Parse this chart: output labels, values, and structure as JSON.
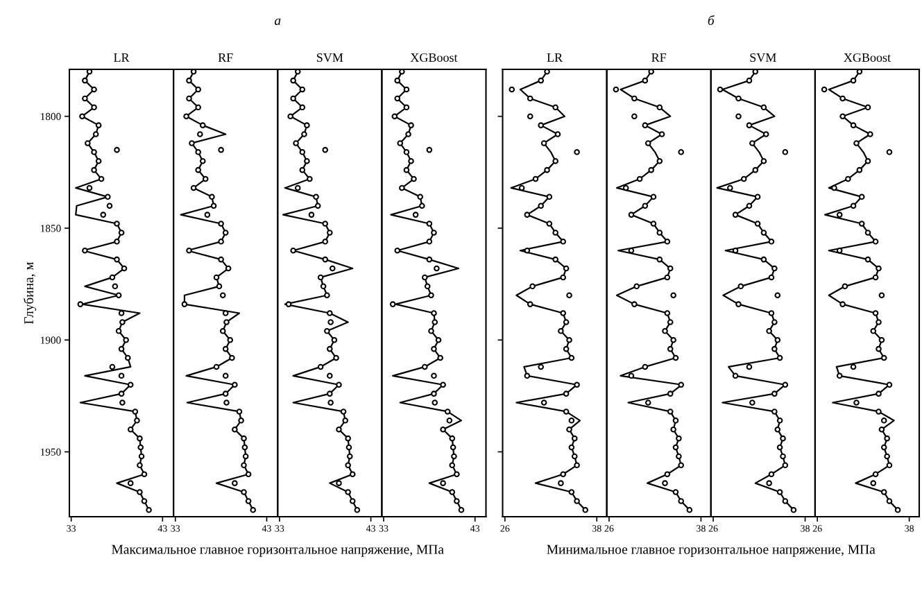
{
  "chart_data": [
    {
      "type": "line",
      "title": "LR",
      "xlabel": "Максимальное главное горизонтальное напряжение, МПа",
      "ylabel": "Глубина, м",
      "xlim": [
        32.8,
        44.2
      ],
      "xticks": [
        33,
        43
      ],
      "ylim": [
        1979,
        1779
      ],
      "yticks": [
        1800,
        1850,
        1900,
        1950
      ],
      "grid": false,
      "legend": false,
      "series": [
        {
          "color": "#000000",
          "x": [
            35.0,
            34.5,
            35.5,
            34.5,
            35.5,
            34.2,
            36.0,
            35.7,
            34.8,
            35.5,
            36.0,
            35.5,
            36.3,
            33.5,
            37.0,
            33.6,
            33.5,
            38.0,
            38.5,
            38.0,
            34.3,
            38.0,
            38.8,
            37.5,
            34.5,
            38.2,
            34.2,
            40.5,
            38.6,
            38.2,
            39.0,
            38.5,
            39.2,
            39.5,
            34.5,
            39.5,
            38.5,
            34.0,
            40.0,
            40.2,
            39.5,
            40.5,
            40.6,
            40.7,
            40.5,
            41.0,
            38.0,
            40.5,
            41.0,
            41.5
          ],
          "values": [
            1780,
            1784,
            1788,
            1792,
            1796,
            1800,
            1804,
            1808,
            1812,
            1816,
            1820,
            1824,
            1828,
            1832,
            1836,
            1840,
            1844,
            1848,
            1852,
            1856,
            1860,
            1864,
            1868,
            1872,
            1876,
            1880,
            1884,
            1888,
            1892,
            1896,
            1900,
            1904,
            1908,
            1912,
            1916,
            1920,
            1924,
            1928,
            1932,
            1936,
            1940,
            1944,
            1948,
            1952,
            1956,
            1960,
            1964,
            1968,
            1972,
            1976
          ]
        },
        {
          "type": "scatter",
          "marker": "circle",
          "color": "#000000",
          "x": [
            35.0,
            34.5,
            35.5,
            34.5,
            35.5,
            34.2,
            36.0,
            35.7,
            34.8,
            35.5,
            36.0,
            35.5,
            36.3,
            35.0,
            37.0,
            37.2,
            36.5,
            38.0,
            38.5,
            38.0,
            34.5,
            38.0,
            38.8,
            37.5,
            37.8,
            38.2,
            34.0,
            38.5,
            38.6,
            38.2,
            39.0,
            38.5,
            39.2,
            37.5,
            38.5,
            39.5,
            38.5,
            38.6,
            40.0,
            40.2,
            39.5,
            40.5,
            40.6,
            40.7,
            40.5,
            41.0,
            39.5,
            40.5,
            41.0,
            41.5,
            38.0
          ],
          "values": [
            1780,
            1784,
            1788,
            1792,
            1796,
            1800,
            1804,
            1808,
            1812,
            1816,
            1820,
            1824,
            1828,
            1832,
            1836,
            1840,
            1844,
            1848,
            1852,
            1856,
            1860,
            1864,
            1868,
            1872,
            1876,
            1880,
            1884,
            1888,
            1892,
            1896,
            1900,
            1904,
            1908,
            1912,
            1916,
            1920,
            1924,
            1928,
            1932,
            1936,
            1940,
            1944,
            1948,
            1952,
            1956,
            1960,
            1964,
            1968,
            1972,
            1976,
            1815
          ]
        }
      ]
    },
    {
      "type": "line",
      "title": "RF",
      "subtitle": "а",
      "xlim": [
        32.8,
        44.2
      ],
      "xticks": [
        33,
        43
      ],
      "ylim": [
        1979,
        1779
      ],
      "tick_labels": "x",
      "grid": false,
      "legend": false,
      "series": [
        {
          "color": "#000000",
          "x": [
            35.0,
            34.5,
            35.5,
            34.5,
            35.5,
            34.2,
            36.0,
            38.5,
            34.8,
            35.5,
            36.0,
            35.5,
            36.3,
            35.0,
            37.0,
            37.2,
            33.6,
            38.0,
            38.5,
            38.0,
            34.3,
            38.0,
            38.8,
            37.5,
            37.8,
            34.0,
            34.0,
            40.0,
            38.6,
            38.2,
            39.0,
            38.5,
            39.2,
            37.5,
            34.2,
            39.5,
            38.5,
            34.3,
            40.0,
            40.2,
            39.5,
            40.5,
            40.6,
            40.7,
            40.5,
            41.0,
            37.5,
            40.5,
            41.0,
            41.5
          ],
          "values": [
            1780,
            1784,
            1788,
            1792,
            1796,
            1800,
            1804,
            1808,
            1812,
            1816,
            1820,
            1824,
            1828,
            1832,
            1836,
            1840,
            1844,
            1848,
            1852,
            1856,
            1860,
            1864,
            1868,
            1872,
            1876,
            1880,
            1884,
            1888,
            1892,
            1896,
            1900,
            1904,
            1908,
            1912,
            1916,
            1920,
            1924,
            1928,
            1932,
            1936,
            1940,
            1944,
            1948,
            1952,
            1956,
            1960,
            1964,
            1968,
            1972,
            1976
          ]
        },
        {
          "type": "scatter",
          "marker": "circle",
          "color": "#000000",
          "x": [
            35.0,
            34.5,
            35.5,
            34.5,
            35.5,
            34.2,
            36.0,
            35.7,
            34.8,
            35.5,
            36.0,
            35.5,
            36.3,
            35.0,
            37.0,
            37.2,
            36.5,
            38.0,
            38.5,
            38.0,
            34.5,
            38.0,
            38.8,
            37.5,
            37.8,
            38.2,
            34.0,
            38.5,
            38.6,
            38.2,
            39.0,
            38.5,
            39.2,
            37.5,
            38.5,
            39.5,
            38.5,
            38.6,
            40.0,
            40.2,
            39.5,
            40.5,
            40.6,
            40.7,
            40.5,
            41.0,
            39.5,
            40.5,
            41.0,
            41.5,
            38.0
          ],
          "values": [
            1780,
            1784,
            1788,
            1792,
            1796,
            1800,
            1804,
            1808,
            1812,
            1816,
            1820,
            1824,
            1828,
            1832,
            1836,
            1840,
            1844,
            1848,
            1852,
            1856,
            1860,
            1864,
            1868,
            1872,
            1876,
            1880,
            1884,
            1888,
            1892,
            1896,
            1900,
            1904,
            1908,
            1912,
            1916,
            1920,
            1924,
            1928,
            1932,
            1936,
            1940,
            1944,
            1948,
            1952,
            1956,
            1960,
            1964,
            1968,
            1972,
            1976,
            1815
          ]
        }
      ]
    },
    {
      "type": "line",
      "title": "SVM",
      "xlim": [
        32.8,
        44.2
      ],
      "xticks": [
        33,
        43
      ],
      "ylim": [
        1979,
        1779
      ],
      "tick_labels": "x",
      "grid": false,
      "legend": false,
      "series": [
        {
          "color": "#000000",
          "x": [
            35.0,
            34.5,
            35.5,
            34.5,
            35.5,
            34.2,
            36.0,
            35.7,
            34.8,
            35.5,
            36.0,
            35.5,
            36.3,
            33.6,
            37.0,
            37.2,
            33.4,
            38.0,
            38.5,
            38.0,
            34.5,
            38.0,
            41.0,
            37.5,
            37.8,
            38.2,
            33.6,
            38.5,
            40.5,
            38.2,
            39.0,
            38.5,
            39.2,
            37.5,
            34.5,
            39.5,
            38.5,
            34.5,
            40.0,
            40.2,
            39.5,
            40.5,
            40.6,
            40.7,
            40.5,
            41.0,
            38.5,
            40.5,
            41.0,
            41.5
          ],
          "values": [
            1780,
            1784,
            1788,
            1792,
            1796,
            1800,
            1804,
            1808,
            1812,
            1816,
            1820,
            1824,
            1828,
            1832,
            1836,
            1840,
            1844,
            1848,
            1852,
            1856,
            1860,
            1864,
            1868,
            1872,
            1876,
            1880,
            1884,
            1888,
            1892,
            1896,
            1900,
            1904,
            1908,
            1912,
            1916,
            1920,
            1924,
            1928,
            1932,
            1936,
            1940,
            1944,
            1948,
            1952,
            1956,
            1960,
            1964,
            1968,
            1972,
            1976
          ]
        },
        {
          "type": "scatter",
          "marker": "circle",
          "color": "#000000",
          "x": [
            35.0,
            34.5,
            35.5,
            34.5,
            35.5,
            34.2,
            36.0,
            35.7,
            34.8,
            35.5,
            36.0,
            35.5,
            36.3,
            35.0,
            37.0,
            37.2,
            36.5,
            38.0,
            38.5,
            38.0,
            34.5,
            38.0,
            38.8,
            37.5,
            37.8,
            38.2,
            34.0,
            38.5,
            38.6,
            38.2,
            39.0,
            38.5,
            39.2,
            37.5,
            38.5,
            39.5,
            38.5,
            38.6,
            40.0,
            40.2,
            39.5,
            40.5,
            40.6,
            40.7,
            40.5,
            41.0,
            39.5,
            40.5,
            41.0,
            41.5,
            38.0
          ],
          "values": [
            1780,
            1784,
            1788,
            1792,
            1796,
            1800,
            1804,
            1808,
            1812,
            1816,
            1820,
            1824,
            1828,
            1832,
            1836,
            1840,
            1844,
            1848,
            1852,
            1856,
            1860,
            1864,
            1868,
            1872,
            1876,
            1880,
            1884,
            1888,
            1892,
            1896,
            1900,
            1904,
            1908,
            1912,
            1916,
            1920,
            1924,
            1928,
            1932,
            1936,
            1940,
            1944,
            1948,
            1952,
            1956,
            1960,
            1964,
            1968,
            1972,
            1976,
            1815
          ]
        }
      ]
    },
    {
      "type": "line",
      "title": "XGBoost",
      "xlim": [
        32.8,
        44.2
      ],
      "xticks": [
        33,
        43
      ],
      "ylim": [
        1979,
        1779
      ],
      "tick_labels": "x",
      "grid": false,
      "legend": false,
      "series": [
        {
          "color": "#000000",
          "x": [
            35.0,
            34.5,
            35.5,
            34.5,
            35.5,
            34.2,
            36.0,
            35.7,
            34.8,
            35.5,
            36.0,
            35.5,
            36.3,
            35.0,
            37.0,
            37.2,
            33.8,
            38.0,
            38.5,
            38.0,
            34.5,
            38.0,
            41.2,
            37.5,
            37.8,
            38.2,
            34.3,
            38.5,
            38.6,
            38.2,
            39.0,
            38.5,
            39.2,
            37.5,
            34.0,
            39.5,
            38.5,
            34.8,
            40.0,
            41.5,
            39.5,
            40.5,
            40.6,
            40.7,
            40.5,
            41.0,
            38.0,
            40.5,
            41.0,
            41.5
          ],
          "values": [
            1780,
            1784,
            1788,
            1792,
            1796,
            1800,
            1804,
            1808,
            1812,
            1816,
            1820,
            1824,
            1828,
            1832,
            1836,
            1840,
            1844,
            1848,
            1852,
            1856,
            1860,
            1864,
            1868,
            1872,
            1876,
            1880,
            1884,
            1888,
            1892,
            1896,
            1900,
            1904,
            1908,
            1912,
            1916,
            1920,
            1924,
            1928,
            1932,
            1936,
            1940,
            1944,
            1948,
            1952,
            1956,
            1960,
            1964,
            1968,
            1972,
            1976
          ]
        },
        {
          "type": "scatter",
          "marker": "circle",
          "color": "#000000",
          "x": [
            35.0,
            34.5,
            35.5,
            34.5,
            35.5,
            34.2,
            36.0,
            35.7,
            34.8,
            35.5,
            36.0,
            35.5,
            36.3,
            35.0,
            37.0,
            37.2,
            36.5,
            38.0,
            38.5,
            38.0,
            34.5,
            38.0,
            38.8,
            37.5,
            37.8,
            38.2,
            34.0,
            38.5,
            38.6,
            38.2,
            39.0,
            38.5,
            39.2,
            37.5,
            38.5,
            39.5,
            38.5,
            38.6,
            40.0,
            40.2,
            39.5,
            40.5,
            40.6,
            40.7,
            40.5,
            41.0,
            39.5,
            40.5,
            41.0,
            41.5,
            38.0
          ],
          "values": [
            1780,
            1784,
            1788,
            1792,
            1796,
            1800,
            1804,
            1808,
            1812,
            1816,
            1820,
            1824,
            1828,
            1832,
            1836,
            1840,
            1844,
            1848,
            1852,
            1856,
            1860,
            1864,
            1868,
            1872,
            1876,
            1880,
            1884,
            1888,
            1892,
            1896,
            1900,
            1904,
            1908,
            1912,
            1916,
            1920,
            1924,
            1928,
            1932,
            1936,
            1940,
            1944,
            1948,
            1952,
            1956,
            1960,
            1964,
            1968,
            1972,
            1976,
            1815
          ]
        }
      ]
    },
    {
      "type": "line",
      "title": "LR",
      "xlabel": "Минимальное главное горизонтальное напряжение, МПа",
      "xlim": [
        25.7,
        39.3
      ],
      "xticks": [
        26,
        38
      ],
      "ylim": [
        1979,
        1779
      ],
      "yticks": [
        {
          "value": 1800,
          "label": null
        },
        {
          "value": 1850,
          "label": null
        },
        {
          "value": 1900,
          "label": null
        },
        {
          "value": 1950,
          "label": null
        }
      ],
      "tick_labels": "x",
      "grid": false,
      "legend": false,
      "series": [
        {
          "color": "#000000",
          "x": [
            31.5,
            30.7,
            28.0,
            29.3,
            32.6,
            33.8,
            30.7,
            32.9,
            31.1,
            32.0,
            32.6,
            31.5,
            30.0,
            26.8,
            31.8,
            30.7,
            28.9,
            31.8,
            32.6,
            33.6,
            28.0,
            32.6,
            34.0,
            33.6,
            29.6,
            27.5,
            29.3,
            33.6,
            34.0,
            33.3,
            34.4,
            34.0,
            34.7,
            28.5,
            28.9,
            35.4,
            34.0,
            27.5,
            34.0,
            35.8,
            34.4,
            35.1,
            34.7,
            35.1,
            35.4,
            33.6,
            30.0,
            34.7,
            35.4,
            36.5
          ],
          "values": [
            1780,
            1784,
            1788,
            1792,
            1796,
            1800,
            1804,
            1808,
            1812,
            1816,
            1820,
            1824,
            1828,
            1832,
            1836,
            1840,
            1844,
            1848,
            1852,
            1856,
            1860,
            1864,
            1868,
            1872,
            1876,
            1880,
            1884,
            1888,
            1892,
            1896,
            1900,
            1904,
            1908,
            1912,
            1916,
            1920,
            1924,
            1928,
            1932,
            1936,
            1940,
            1944,
            1948,
            1952,
            1956,
            1960,
            1964,
            1968,
            1972,
            1976
          ]
        },
        {
          "type": "scatter",
          "marker": "circle",
          "color": "#000000",
          "x": [
            31.5,
            30.7,
            26.9,
            29.3,
            32.6,
            29.3,
            30.7,
            32.9,
            31.1,
            35.4,
            32.6,
            31.5,
            30.0,
            28.2,
            31.8,
            30.7,
            28.9,
            31.8,
            32.6,
            33.6,
            28.9,
            32.6,
            34.0,
            33.6,
            29.6,
            34.4,
            29.3,
            33.6,
            34.0,
            33.3,
            34.4,
            34.0,
            34.7,
            30.7,
            28.9,
            35.4,
            34.0,
            31.1,
            34.0,
            34.7,
            34.4,
            35.1,
            34.7,
            35.1,
            35.4,
            33.6,
            33.3,
            34.7,
            35.4,
            36.5
          ],
          "values": [
            1780,
            1784,
            1788,
            1792,
            1796,
            1800,
            1804,
            1808,
            1812,
            1816,
            1820,
            1824,
            1828,
            1832,
            1836,
            1840,
            1844,
            1848,
            1852,
            1856,
            1860,
            1864,
            1868,
            1872,
            1876,
            1880,
            1884,
            1888,
            1892,
            1896,
            1900,
            1904,
            1908,
            1912,
            1916,
            1920,
            1924,
            1928,
            1932,
            1936,
            1940,
            1944,
            1948,
            1952,
            1956,
            1960,
            1964,
            1968,
            1972,
            1976
          ]
        }
      ]
    },
    {
      "type": "line",
      "title": "RF",
      "subtitle": "б",
      "xlim": [
        25.7,
        39.3
      ],
      "xticks": [
        26,
        38
      ],
      "ylim": [
        1979,
        1779
      ],
      "tick_labels": "x",
      "grid": false,
      "legend": false,
      "series": [
        {
          "color": "#000000",
          "x": [
            31.5,
            30.7,
            27.5,
            29.3,
            32.6,
            34.0,
            30.7,
            32.9,
            31.1,
            32.0,
            32.6,
            31.5,
            30.0,
            27.0,
            31.8,
            30.7,
            28.9,
            31.8,
            32.6,
            33.6,
            27.2,
            32.6,
            34.0,
            33.6,
            29.6,
            27.0,
            29.3,
            33.6,
            34.0,
            33.3,
            34.4,
            34.0,
            34.7,
            30.7,
            27.5,
            35.5,
            34.0,
            28.5,
            34.0,
            34.7,
            34.4,
            35.1,
            34.7,
            35.1,
            35.4,
            33.6,
            31.0,
            34.7,
            35.4,
            36.5
          ],
          "values": [
            1780,
            1784,
            1788,
            1792,
            1796,
            1800,
            1804,
            1808,
            1812,
            1816,
            1820,
            1824,
            1828,
            1832,
            1836,
            1840,
            1844,
            1848,
            1852,
            1856,
            1860,
            1864,
            1868,
            1872,
            1876,
            1880,
            1884,
            1888,
            1892,
            1896,
            1900,
            1904,
            1908,
            1912,
            1916,
            1920,
            1924,
            1928,
            1932,
            1936,
            1940,
            1944,
            1948,
            1952,
            1956,
            1960,
            1964,
            1968,
            1972,
            1976
          ]
        },
        {
          "type": "scatter",
          "marker": "circle",
          "color": "#000000",
          "x": [
            31.5,
            30.7,
            26.9,
            29.3,
            32.6,
            29.3,
            30.7,
            32.9,
            31.1,
            35.4,
            32.6,
            31.5,
            30.0,
            28.2,
            31.8,
            30.7,
            28.9,
            31.8,
            32.6,
            33.6,
            28.9,
            32.6,
            34.0,
            33.6,
            29.6,
            34.4,
            29.3,
            33.6,
            34.0,
            33.3,
            34.4,
            34.0,
            34.7,
            30.7,
            28.9,
            35.4,
            34.0,
            31.1,
            34.0,
            34.7,
            34.4,
            35.1,
            34.7,
            35.1,
            35.4,
            33.6,
            33.3,
            34.7,
            35.4,
            36.5
          ],
          "values": [
            1780,
            1784,
            1788,
            1792,
            1796,
            1800,
            1804,
            1808,
            1812,
            1816,
            1820,
            1824,
            1828,
            1832,
            1836,
            1840,
            1844,
            1848,
            1852,
            1856,
            1860,
            1864,
            1868,
            1872,
            1876,
            1880,
            1884,
            1888,
            1892,
            1896,
            1900,
            1904,
            1908,
            1912,
            1916,
            1920,
            1924,
            1928,
            1932,
            1936,
            1940,
            1944,
            1948,
            1952,
            1956,
            1960,
            1964,
            1968,
            1972,
            1976
          ]
        }
      ]
    },
    {
      "type": "line",
      "title": "SVM",
      "xlim": [
        25.7,
        39.3
      ],
      "xticks": [
        26,
        38
      ],
      "ylim": [
        1979,
        1779
      ],
      "tick_labels": "x",
      "grid": false,
      "legend": false,
      "series": [
        {
          "color": "#000000",
          "x": [
            31.5,
            30.7,
            27.2,
            29.3,
            32.6,
            34.0,
            30.7,
            32.9,
            31.1,
            32.0,
            32.6,
            31.5,
            30.0,
            26.5,
            31.8,
            30.7,
            28.9,
            31.8,
            32.6,
            33.6,
            27.6,
            32.6,
            34.0,
            33.6,
            29.6,
            27.3,
            29.3,
            33.6,
            34.0,
            33.3,
            34.4,
            34.0,
            34.7,
            28.0,
            28.9,
            35.4,
            34.0,
            27.2,
            34.0,
            34.7,
            34.4,
            35.1,
            34.7,
            35.1,
            35.4,
            33.6,
            31.5,
            34.7,
            35.4,
            36.5
          ],
          "values": [
            1780,
            1784,
            1788,
            1792,
            1796,
            1800,
            1804,
            1808,
            1812,
            1816,
            1820,
            1824,
            1828,
            1832,
            1836,
            1840,
            1844,
            1848,
            1852,
            1856,
            1860,
            1864,
            1868,
            1872,
            1876,
            1880,
            1884,
            1888,
            1892,
            1896,
            1900,
            1904,
            1908,
            1912,
            1916,
            1920,
            1924,
            1928,
            1932,
            1936,
            1940,
            1944,
            1948,
            1952,
            1956,
            1960,
            1964,
            1968,
            1972,
            1976
          ]
        },
        {
          "type": "scatter",
          "marker": "circle",
          "color": "#000000",
          "x": [
            31.5,
            30.7,
            26.9,
            29.3,
            32.6,
            29.3,
            30.7,
            32.9,
            31.1,
            35.4,
            32.6,
            31.5,
            30.0,
            28.2,
            31.8,
            30.7,
            28.9,
            31.8,
            32.6,
            33.6,
            28.9,
            32.6,
            34.0,
            33.6,
            29.6,
            34.4,
            29.3,
            33.6,
            34.0,
            33.3,
            34.4,
            34.0,
            34.7,
            30.7,
            28.9,
            35.4,
            34.0,
            31.1,
            34.0,
            34.7,
            34.4,
            35.1,
            34.7,
            35.1,
            35.4,
            33.6,
            33.3,
            34.7,
            35.4,
            36.5
          ],
          "values": [
            1780,
            1784,
            1788,
            1792,
            1796,
            1800,
            1804,
            1808,
            1812,
            1816,
            1820,
            1824,
            1828,
            1832,
            1836,
            1840,
            1844,
            1848,
            1852,
            1856,
            1860,
            1864,
            1868,
            1872,
            1876,
            1880,
            1884,
            1888,
            1892,
            1896,
            1900,
            1904,
            1908,
            1912,
            1916,
            1920,
            1924,
            1928,
            1932,
            1936,
            1940,
            1944,
            1948,
            1952,
            1956,
            1960,
            1964,
            1968,
            1972,
            1976
          ]
        }
      ]
    },
    {
      "type": "line",
      "title": "XGBoost",
      "xlim": [
        25.7,
        39.3
      ],
      "xticks": [
        26,
        38
      ],
      "ylim": [
        1979,
        1779
      ],
      "tick_labels": "x",
      "grid": false,
      "legend": false,
      "series": [
        {
          "color": "#000000",
          "x": [
            31.5,
            30.7,
            27.5,
            29.3,
            32.6,
            29.3,
            30.7,
            32.9,
            31.1,
            32.0,
            32.6,
            31.5,
            30.0,
            27.5,
            31.8,
            30.7,
            27.0,
            31.8,
            32.6,
            33.6,
            27.5,
            32.6,
            34.0,
            33.6,
            29.6,
            27.5,
            29.3,
            33.6,
            34.0,
            33.3,
            34.4,
            34.0,
            34.7,
            28.5,
            28.9,
            35.4,
            34.0,
            28.0,
            34.0,
            36.0,
            34.4,
            35.1,
            34.7,
            35.1,
            35.4,
            33.6,
            31.0,
            34.7,
            35.4,
            36.5
          ],
          "values": [
            1780,
            1784,
            1788,
            1792,
            1796,
            1800,
            1804,
            1808,
            1812,
            1816,
            1820,
            1824,
            1828,
            1832,
            1836,
            1840,
            1844,
            1848,
            1852,
            1856,
            1860,
            1864,
            1868,
            1872,
            1876,
            1880,
            1884,
            1888,
            1892,
            1896,
            1900,
            1904,
            1908,
            1912,
            1916,
            1920,
            1924,
            1928,
            1932,
            1936,
            1940,
            1944,
            1948,
            1952,
            1956,
            1960,
            1964,
            1968,
            1972,
            1976
          ]
        },
        {
          "type": "scatter",
          "marker": "circle",
          "color": "#000000",
          "x": [
            31.5,
            30.7,
            26.9,
            29.3,
            32.6,
            29.3,
            30.7,
            32.9,
            31.1,
            35.4,
            32.6,
            31.5,
            30.0,
            28.2,
            31.8,
            30.7,
            28.9,
            31.8,
            32.6,
            33.6,
            28.9,
            32.6,
            34.0,
            33.6,
            29.6,
            34.4,
            29.3,
            33.6,
            34.0,
            33.3,
            34.4,
            34.0,
            34.7,
            30.7,
            28.9,
            35.4,
            34.0,
            31.1,
            34.0,
            34.7,
            34.4,
            35.1,
            34.7,
            35.1,
            35.4,
            33.6,
            33.3,
            34.7,
            35.4,
            36.5
          ],
          "values": [
            1780,
            1784,
            1788,
            1792,
            1796,
            1800,
            1804,
            1808,
            1812,
            1816,
            1820,
            1824,
            1828,
            1832,
            1836,
            1840,
            1844,
            1848,
            1852,
            1856,
            1860,
            1864,
            1868,
            1872,
            1876,
            1880,
            1884,
            1888,
            1892,
            1896,
            1900,
            1904,
            1908,
            1912,
            1916,
            1920,
            1924,
            1928,
            1932,
            1936,
            1940,
            1944,
            1948,
            1952,
            1956,
            1960,
            1964,
            1968,
            1972,
            1976
          ]
        }
      ]
    }
  ]
}
